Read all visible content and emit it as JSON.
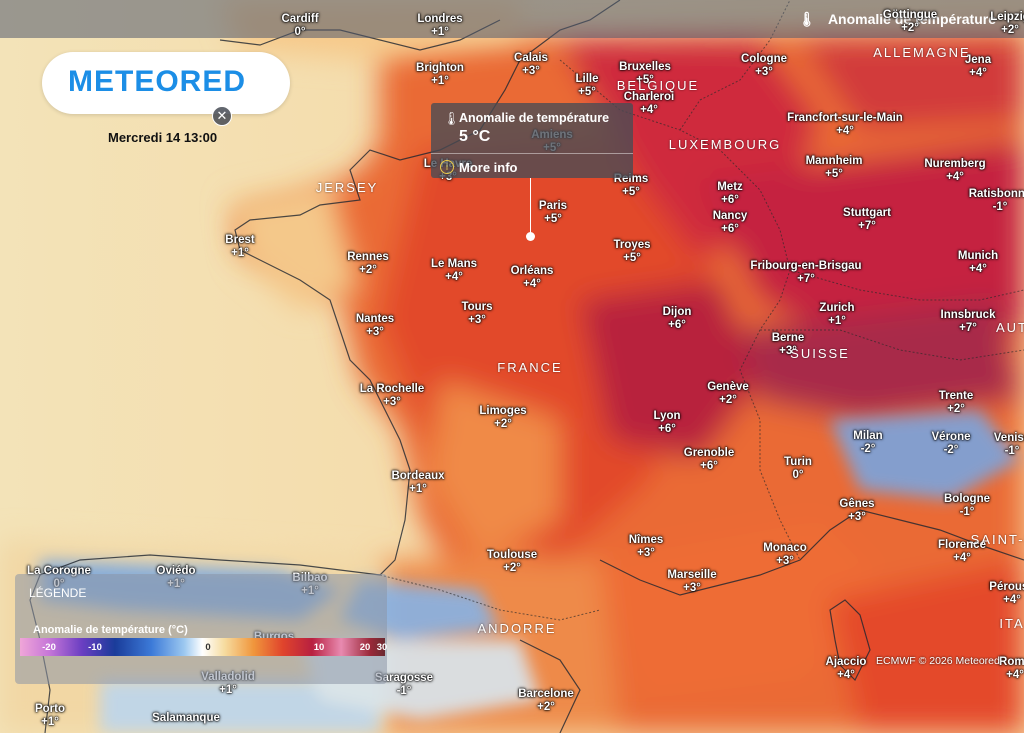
{
  "header": {
    "title": "Anomalie de température"
  },
  "brand": {
    "logo_text": "METEORED",
    "accent": "#1c8ee6"
  },
  "date_label": "Mercredi 14 13:00",
  "popup": {
    "title": "Anomalie de température",
    "value": "5 °C",
    "more_label": "More info",
    "close_symbol": "✕"
  },
  "legend": {
    "title": "LÉGENDE",
    "subtitle": "Anomalie de température (°C)",
    "ticks": [
      "-20",
      "-10",
      "0",
      "10",
      "20",
      "30"
    ]
  },
  "copyright": "ECMWF © 2026 Meteored",
  "countries": [
    {
      "name": "BELGIQUE"
    },
    {
      "name": "LUXEMBOURG"
    },
    {
      "name": "ALLEMAGNE"
    },
    {
      "name": "FRANCE"
    },
    {
      "name": "SUISSE"
    },
    {
      "name": "JERSEY"
    },
    {
      "name": "ANDORRE"
    },
    {
      "name": "AUT"
    },
    {
      "name": "ITA"
    },
    {
      "name": "SAINT-M"
    }
  ],
  "cities": [
    {
      "name": "Cardiff",
      "value": "0°"
    },
    {
      "name": "Londres",
      "value": "+1°"
    },
    {
      "name": "Brighton",
      "value": "+1°"
    },
    {
      "name": "Calais",
      "value": "+3°"
    },
    {
      "name": "Lille",
      "value": "+5°"
    },
    {
      "name": "Bruxelles",
      "value": "+5°"
    },
    {
      "name": "Charleroi",
      "value": "+4°"
    },
    {
      "name": "Amiens",
      "value": "+5°"
    },
    {
      "name": "Le Havre",
      "value": "+3°"
    },
    {
      "name": "Reims",
      "value": "+5°"
    },
    {
      "name": "Cologne",
      "value": "+3°"
    },
    {
      "name": "Göttingue",
      "value": "+2°"
    },
    {
      "name": "Leipzig",
      "value": "+2°"
    },
    {
      "name": "Jena",
      "value": "+4°"
    },
    {
      "name": "Francfort-sur-le-Main",
      "value": "+4°"
    },
    {
      "name": "Mannheim",
      "value": "+5°"
    },
    {
      "name": "Nuremberg",
      "value": "+4°"
    },
    {
      "name": "Ratisbonne",
      "value": "-1°"
    },
    {
      "name": "Stuttgart",
      "value": "+7°"
    },
    {
      "name": "Munich",
      "value": "+4°"
    },
    {
      "name": "Metz",
      "value": "+6°"
    },
    {
      "name": "Nancy",
      "value": "+6°"
    },
    {
      "name": "Paris",
      "value": "+5°"
    },
    {
      "name": "Brest",
      "value": "+1°"
    },
    {
      "name": "Rennes",
      "value": "+2°"
    },
    {
      "name": "Le Mans",
      "value": "+4°"
    },
    {
      "name": "Orléans",
      "value": "+4°"
    },
    {
      "name": "Troyes",
      "value": "+5°"
    },
    {
      "name": "Fribourg-en-Brisgau",
      "value": "+7°"
    },
    {
      "name": "Zurich",
      "value": "+1°"
    },
    {
      "name": "Innsbruck",
      "value": "+7°"
    },
    {
      "name": "Nantes",
      "value": "+3°"
    },
    {
      "name": "Tours",
      "value": "+3°"
    },
    {
      "name": "Dijon",
      "value": "+6°"
    },
    {
      "name": "Berne",
      "value": "+3°"
    },
    {
      "name": "La Rochelle",
      "value": "+3°"
    },
    {
      "name": "Limoges",
      "value": "+2°"
    },
    {
      "name": "Genève",
      "value": "+2°"
    },
    {
      "name": "Lyon",
      "value": "+6°"
    },
    {
      "name": "Trente",
      "value": "+2°"
    },
    {
      "name": "Milan",
      "value": "-2°"
    },
    {
      "name": "Vérone",
      "value": "-2°"
    },
    {
      "name": "Venise",
      "value": "-1°"
    },
    {
      "name": "Grenoble",
      "value": "+6°"
    },
    {
      "name": "Turin",
      "value": "0°"
    },
    {
      "name": "Bordeaux",
      "value": "+1°"
    },
    {
      "name": "Bologne",
      "value": "-1°"
    },
    {
      "name": "Gênes",
      "value": "+3°"
    },
    {
      "name": "Nîmes",
      "value": "+3°"
    },
    {
      "name": "Florence",
      "value": "+4°"
    },
    {
      "name": "Toulouse",
      "value": "+2°"
    },
    {
      "name": "Monaco",
      "value": "+3°"
    },
    {
      "name": "Marseille",
      "value": "+3°"
    },
    {
      "name": "Pérouse",
      "value": "+4°"
    },
    {
      "name": "La Corogne",
      "value": "0°"
    },
    {
      "name": "Oviédo",
      "value": "+1°"
    },
    {
      "name": "Bilbao",
      "value": "+1°"
    },
    {
      "name": "Burgos",
      "value": ""
    },
    {
      "name": "Ajaccio",
      "value": "+4°"
    },
    {
      "name": "Rome",
      "value": "+4°"
    },
    {
      "name": "Valladolid",
      "value": "+1°"
    },
    {
      "name": "Saragosse",
      "value": "-1°"
    },
    {
      "name": "Porto",
      "value": "+1°"
    },
    {
      "name": "Barcelone",
      "value": "+2°"
    },
    {
      "name": "Salamanque",
      "value": ""
    }
  ]
}
